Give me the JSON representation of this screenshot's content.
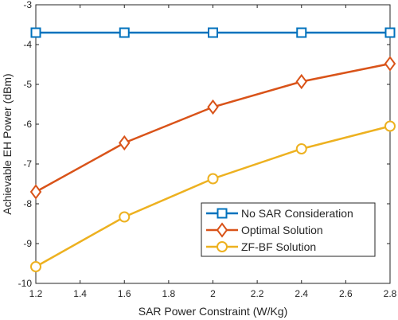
{
  "chart_data": {
    "type": "line",
    "title": "",
    "xlabel": "SAR Power Constraint (W/Kg)",
    "ylabel": "Achievable  EH Power (dBm)",
    "xlim": [
      1.2,
      2.8
    ],
    "ylim": [
      -10,
      -3
    ],
    "xticks": [
      1.2,
      1.4,
      1.6,
      1.8,
      2.0,
      2.2,
      2.4,
      2.6,
      2.8
    ],
    "xtick_labels": [
      "1.2",
      "1.4",
      "1.6",
      "1.8",
      "2",
      "2.2",
      "2.4",
      "2.6",
      "2.8"
    ],
    "yticks": [
      -10,
      -9,
      -8,
      -7,
      -6,
      -5,
      -4,
      -3
    ],
    "ytick_labels": [
      "-10",
      "-9",
      "-8",
      "-7",
      "-6",
      "-5",
      "-4",
      "-3"
    ],
    "grid": true,
    "legend_position": "lower-right",
    "x": [
      1.2,
      1.6,
      2.0,
      2.4,
      2.8
    ],
    "series": [
      {
        "name": "No SAR Consideration",
        "values": [
          -3.7,
          -3.7,
          -3.7,
          -3.7,
          -3.7
        ],
        "color": "#0072BD",
        "marker": "square"
      },
      {
        "name": "Optimal Solution",
        "values": [
          -7.7,
          -6.47,
          -5.57,
          -4.93,
          -4.48
        ],
        "color": "#D95319",
        "marker": "diamond"
      },
      {
        "name": "ZF-BF Solution",
        "values": [
          -9.58,
          -8.33,
          -7.37,
          -6.62,
          -6.05
        ],
        "color": "#EDB120",
        "marker": "circle"
      }
    ]
  }
}
